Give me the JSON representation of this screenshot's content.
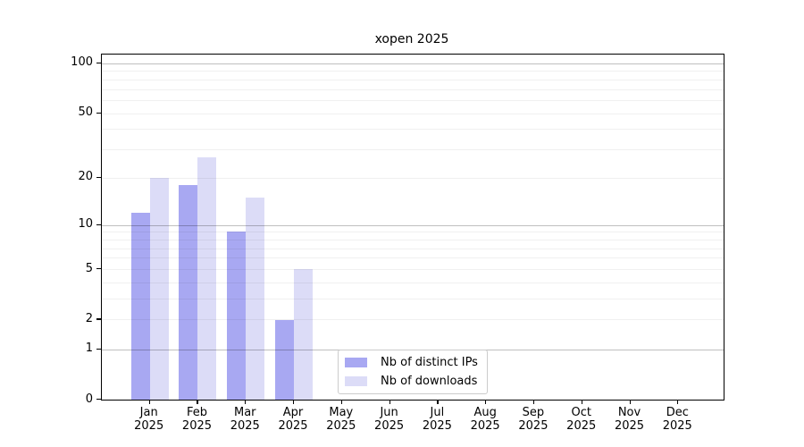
{
  "chart_data": {
    "type": "bar",
    "title": "xopen 2025",
    "categories": [
      "Jan",
      "Feb",
      "Mar",
      "Apr",
      "May",
      "Jun",
      "Jul",
      "Aug",
      "Sep",
      "Oct",
      "Nov",
      "Dec"
    ],
    "category_year_line": "2025",
    "series": [
      {
        "name": "Nb of distinct IPs",
        "color": "#a8a8f2",
        "values": [
          12,
          18,
          9,
          2,
          0,
          0,
          0,
          0,
          0,
          0,
          0,
          0
        ]
      },
      {
        "name": "Nb of downloads",
        "color": "#dcdcf7",
        "values": [
          20,
          27,
          15,
          5,
          0,
          0,
          0,
          0,
          0,
          0,
          0,
          0
        ]
      }
    ],
    "y_scale": "log10(1+v)",
    "y_tick_labels": [
      0,
      1,
      2,
      5,
      10,
      20,
      50,
      100
    ],
    "y_major_gridlines": [
      1,
      10,
      100
    ],
    "y_minor_gridlines": [
      2,
      3,
      4,
      5,
      6,
      7,
      8,
      9,
      20,
      30,
      40,
      50,
      60,
      70,
      80,
      90
    ],
    "ylim": [
      0,
      112
    ],
    "grid": true,
    "legend": {
      "position": "lower center"
    },
    "colors": {
      "background": "#ffffff",
      "spine": "#000000",
      "legend_border": "#cccccc"
    }
  }
}
